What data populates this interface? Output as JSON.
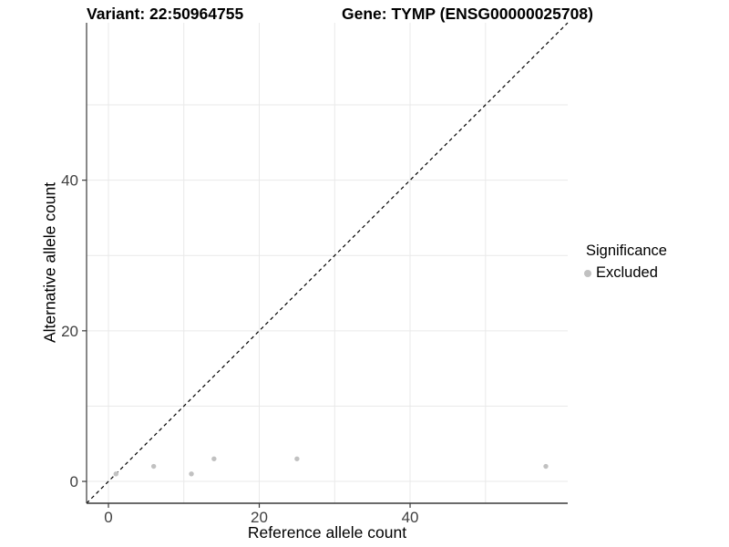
{
  "titles": {
    "variant": "Variant: 22:50964755",
    "gene": "Gene: TYMP (ENSG00000025708)"
  },
  "chart_data": {
    "type": "scatter",
    "title_left": "Variant: 22:50964755",
    "title_right": "Gene: TYMP (ENSG00000025708)",
    "xlabel": "Reference allele count",
    "ylabel": "Alternative allele count",
    "xlim": [
      -2.9,
      60.9
    ],
    "ylim": [
      -2.9,
      60.9
    ],
    "xticks": [
      0,
      20,
      40
    ],
    "yticks": [
      0,
      20,
      40
    ],
    "gridlines": {
      "x": [
        0,
        10,
        20,
        30,
        40,
        50
      ],
      "y": [
        0,
        10,
        20,
        30,
        40,
        50
      ]
    },
    "identity_line": {
      "style": "dashed",
      "equation": "y = x",
      "color": "#000000"
    },
    "series": [
      {
        "name": "Excluded",
        "color": "#c1c1c1",
        "points": [
          [
            1,
            1
          ],
          [
            6,
            2
          ],
          [
            11,
            1
          ],
          [
            14,
            3
          ],
          [
            25,
            3
          ],
          [
            58,
            2
          ]
        ]
      }
    ],
    "legend": {
      "title": "Significance",
      "position": "right",
      "items": [
        {
          "label": "Excluded",
          "color": "#c1c1c1"
        }
      ]
    }
  }
}
